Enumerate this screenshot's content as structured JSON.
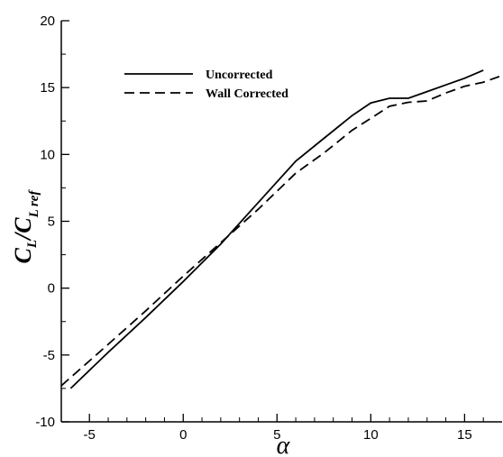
{
  "chart_data": {
    "type": "line",
    "xlabel": "α",
    "ylabel": {
      "main": "C",
      "sub1": "L",
      "mid": "/C",
      "sub2": "L ref"
    },
    "xlim": [
      -6.5,
      17
    ],
    "ylim": [
      -10,
      20
    ],
    "xticks": [
      -5,
      0,
      5,
      10,
      15
    ],
    "yticks": [
      -10,
      -5,
      0,
      5,
      10,
      15,
      20
    ],
    "grid": false,
    "legend_position": "upper-left",
    "series": [
      {
        "name": "Uncorrected",
        "dash": "solid",
        "x": [
          -6.0,
          -4.0,
          -2.0,
          0.0,
          2.0,
          4.0,
          6.0,
          7.5,
          9.0,
          10.0,
          11.0,
          12.0,
          13.0,
          14.0,
          15.0,
          16.0
        ],
        "y": [
          -7.5,
          -4.8,
          -2.2,
          0.5,
          3.3,
          6.4,
          9.5,
          11.2,
          12.9,
          13.85,
          14.2,
          14.2,
          14.7,
          15.2,
          15.7,
          16.3
        ]
      },
      {
        "name": "Wall Corrected",
        "dash": "dashed",
        "x": [
          -6.5,
          -4.0,
          -2.0,
          0.0,
          2.0,
          4.0,
          6.0,
          7.5,
          9.0,
          10.0,
          11.0,
          12.0,
          13.0,
          14.0,
          15.0,
          16.0,
          17.0
        ],
        "y": [
          -7.3,
          -4.2,
          -1.7,
          0.9,
          3.4,
          5.9,
          8.6,
          10.1,
          11.8,
          12.7,
          13.6,
          13.9,
          14.0,
          14.6,
          15.1,
          15.4,
          15.9
        ]
      }
    ]
  }
}
